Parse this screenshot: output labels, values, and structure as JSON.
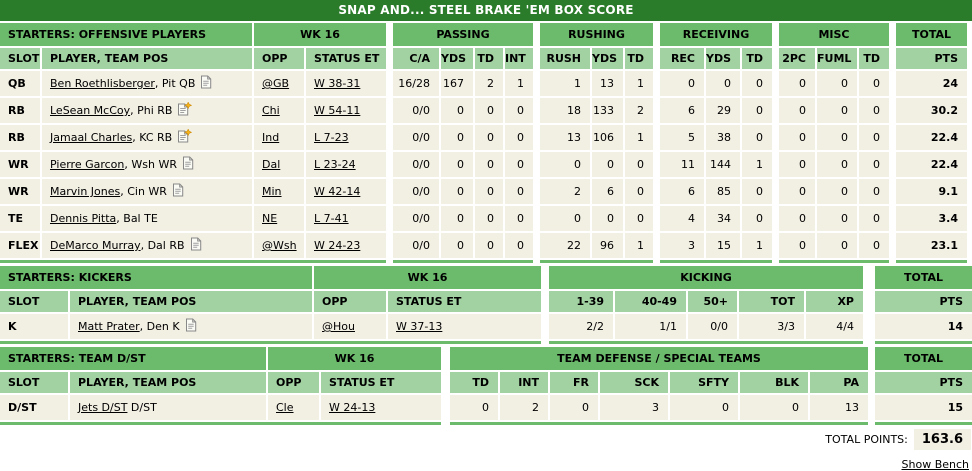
{
  "page": {
    "title": "SNAP AND... STEEL BRAKE 'EM BOX SCORE"
  },
  "colors": {
    "title_bar": "#2a7b2a",
    "section_header": "#6cba6c",
    "column_header": "#a2d1a2",
    "row_background": "#f2efe3",
    "news_badge": "#f6b51e"
  },
  "offense": {
    "section_label": "STARTERS: OFFENSIVE PLAYERS",
    "week_label": "WK 16",
    "info_columns": [
      "SLOT",
      "PLAYER, TEAM POS",
      "OPP",
      "STATUS ET"
    ],
    "groups": [
      {
        "label": "PASSING",
        "columns": [
          "C/A",
          "YDS",
          "TD",
          "INT"
        ]
      },
      {
        "label": "RUSHING",
        "columns": [
          "RUSH",
          "YDS",
          "TD"
        ]
      },
      {
        "label": "RECEIVING",
        "columns": [
          "REC",
          "YDS",
          "TD"
        ]
      },
      {
        "label": "MISC",
        "columns": [
          "2PC",
          "FUML",
          "TD"
        ]
      }
    ],
    "total_label": "TOTAL",
    "pts_label": "PTS",
    "rows": [
      {
        "slot": "QB",
        "player": "Ben Roethlisberger",
        "team_pos": ", Pit QB",
        "icon": "note",
        "opp": "@GB",
        "status": "W 38-31",
        "stats": [
          "16/28",
          "167",
          "2",
          "1",
          "1",
          "13",
          "1",
          "0",
          "0",
          "0",
          "0",
          "0",
          "0"
        ],
        "pts": "24"
      },
      {
        "slot": "RB",
        "player": "LeSean McCoy",
        "team_pos": ", Phi RB",
        "icon": "note-new",
        "opp": "Chi",
        "status": "W 54-11",
        "stats": [
          "0/0",
          "0",
          "0",
          "0",
          "18",
          "133",
          "2",
          "6",
          "29",
          "0",
          "0",
          "0",
          "0"
        ],
        "pts": "30.2"
      },
      {
        "slot": "RB",
        "player": "Jamaal Charles",
        "team_pos": ", KC RB",
        "icon": "note-new",
        "opp": "Ind",
        "status": "L 7-23",
        "stats": [
          "0/0",
          "0",
          "0",
          "0",
          "13",
          "106",
          "1",
          "5",
          "38",
          "0",
          "0",
          "0",
          "0"
        ],
        "pts": "22.4"
      },
      {
        "slot": "WR",
        "player": "Pierre Garcon",
        "team_pos": ", Wsh WR",
        "icon": "note",
        "opp": "Dal",
        "status": "L 23-24",
        "stats": [
          "0/0",
          "0",
          "0",
          "0",
          "0",
          "0",
          "0",
          "11",
          "144",
          "1",
          "0",
          "0",
          "0"
        ],
        "pts": "22.4"
      },
      {
        "slot": "WR",
        "player": "Marvin Jones",
        "team_pos": ", Cin WR",
        "icon": "note",
        "opp": "Min",
        "status": "W 42-14",
        "stats": [
          "0/0",
          "0",
          "0",
          "0",
          "2",
          "6",
          "0",
          "6",
          "85",
          "0",
          "0",
          "0",
          "0"
        ],
        "pts": "9.1"
      },
      {
        "slot": "TE",
        "player": "Dennis Pitta",
        "team_pos": ", Bal TE",
        "icon": "none",
        "opp": "NE",
        "status": "L 7-41",
        "stats": [
          "0/0",
          "0",
          "0",
          "0",
          "0",
          "0",
          "0",
          "4",
          "34",
          "0",
          "0",
          "0",
          "0"
        ],
        "pts": "3.4"
      },
      {
        "slot": "FLEX",
        "player": "DeMarco Murray",
        "team_pos": ", Dal RB",
        "icon": "note",
        "opp": "@Wsh",
        "status": "W 24-23",
        "stats": [
          "0/0",
          "0",
          "0",
          "0",
          "22",
          "96",
          "1",
          "3",
          "15",
          "1",
          "0",
          "0",
          "0"
        ],
        "pts": "23.1"
      }
    ]
  },
  "kickers": {
    "section_label": "STARTERS: KICKERS",
    "week_label": "WK 16",
    "info_columns": [
      "SLOT",
      "PLAYER, TEAM POS",
      "OPP",
      "STATUS ET"
    ],
    "groups": [
      {
        "label": "KICKING",
        "columns": [
          "1-39",
          "40-49",
          "50+",
          "TOT",
          "XP"
        ]
      }
    ],
    "total_label": "TOTAL",
    "pts_label": "PTS",
    "rows": [
      {
        "slot": "K",
        "player": "Matt Prater",
        "team_pos": ", Den K",
        "icon": "note",
        "opp": "@Hou",
        "status": "W 37-13",
        "stats": [
          "2/2",
          "1/1",
          "0/0",
          "3/3",
          "4/4"
        ],
        "pts": "14"
      }
    ]
  },
  "dst": {
    "section_label": "STARTERS: TEAM D/ST",
    "week_label": "WK 16",
    "info_columns": [
      "SLOT",
      "PLAYER, TEAM POS",
      "OPP",
      "STATUS ET"
    ],
    "groups": [
      {
        "label": "TEAM DEFENSE / SPECIAL TEAMS",
        "columns": [
          "TD",
          "INT",
          "FR",
          "SCK",
          "SFTY",
          "BLK",
          "PA"
        ]
      }
    ],
    "total_label": "TOTAL",
    "pts_label": "PTS",
    "rows": [
      {
        "slot": "D/ST",
        "player": "Jets D/ST",
        "team_pos": " D/ST",
        "icon": "none",
        "opp": "Cle",
        "status": "W 24-13",
        "stats": [
          "0",
          "2",
          "0",
          "3",
          "0",
          "0",
          "13"
        ],
        "pts": "15"
      }
    ]
  },
  "footer": {
    "total_points_label": "TOTAL POINTS:",
    "total_points_value": "163.6",
    "show_bench_label": "Show Bench"
  }
}
